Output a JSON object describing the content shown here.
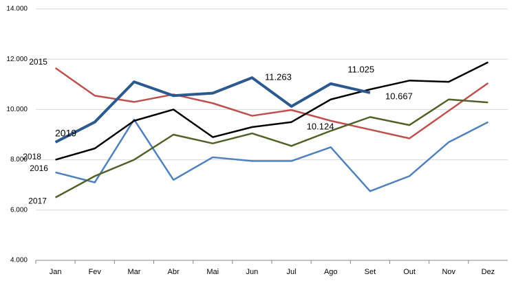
{
  "chart_data": {
    "type": "line",
    "categories": [
      "Jan",
      "Fev",
      "Mar",
      "Abr",
      "Mai",
      "Jun",
      "Jul",
      "Ago",
      "Set",
      "Out",
      "Nov",
      "Dez"
    ],
    "ylim": [
      4000,
      14000
    ],
    "yticks": [
      {
        "value": 4000,
        "label": "4.000"
      },
      {
        "value": 6000,
        "label": "6.000"
      },
      {
        "value": 8000,
        "label": "8.000"
      },
      {
        "value": 10000,
        "label": "10.000"
      },
      {
        "value": 12000,
        "label": "12.000"
      },
      {
        "value": 14000,
        "label": "14.000"
      }
    ],
    "grid": true,
    "series": [
      {
        "name": "2015",
        "color": "#c0504d",
        "values": [
          11650,
          10550,
          10300,
          10600,
          10250,
          9750,
          9980,
          9550,
          9200,
          8850,
          9950,
          11050
        ]
      },
      {
        "name": "2016",
        "color": "#4f81bd",
        "values": [
          7500,
          7100,
          9600,
          7200,
          8100,
          7950,
          7950,
          8500,
          6750,
          7350,
          8700,
          9500
        ]
      },
      {
        "name": "2017",
        "color": "#4f6228",
        "values": [
          6500,
          7350,
          8000,
          9000,
          8650,
          9050,
          8550,
          9150,
          9700,
          9380,
          10400,
          10280
        ]
      },
      {
        "name": "2018",
        "color": "#000000",
        "values": [
          8000,
          8450,
          9550,
          10000,
          8900,
          9300,
          9500,
          10400,
          10800,
          11150,
          11100,
          11880
        ]
      },
      {
        "name": "2019",
        "color": "#2c5a8e",
        "values": [
          8700,
          9500,
          11100,
          10550,
          10650,
          11263,
          10124,
          11025,
          10667,
          null,
          null,
          null
        ],
        "value_labels": [
          null,
          null,
          null,
          null,
          null,
          "11.263",
          "10.124",
          "11.025",
          "10.667",
          null,
          null,
          null
        ]
      }
    ]
  }
}
